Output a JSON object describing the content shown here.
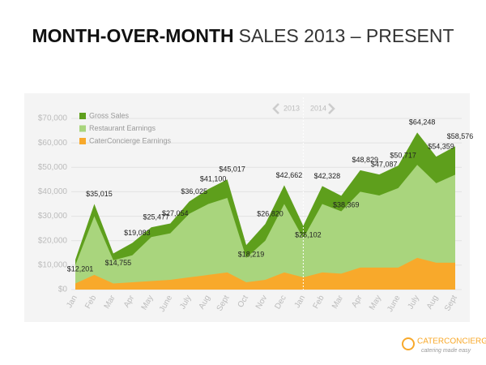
{
  "chart_data": {
    "type": "area",
    "title": {
      "bold": "MONTH-OVER-MONTH",
      "rest": "SALES 2013 – PRESENT"
    },
    "categories": [
      "Jan",
      "Feb",
      "Mar",
      "Apr",
      "May",
      "June",
      "July",
      "Aug",
      "Sept",
      "Oct",
      "Nov",
      "Dec",
      "Jan",
      "Feb",
      "Mar",
      "Apr",
      "May",
      "June",
      "July",
      "Aug",
      "Sept"
    ],
    "series": [
      {
        "name": "Gross Sales",
        "color": "#5e9f1c",
        "values": [
          12201,
          35015,
          14755,
          19083,
          25477,
          27054,
          36025,
          41100,
          45017,
          18219,
          26820,
          42662,
          26102,
          42328,
          38369,
          48829,
          47087,
          50717,
          64248,
          54359,
          58576
        ],
        "value_labels": [
          "$12,201",
          "$35,015",
          "$14,755",
          "$19,083",
          "$25,477",
          "$27,054",
          "$36,025",
          "$41,100",
          "$45,017",
          "$18,219",
          "$26,820",
          "$42,662",
          "$26,102",
          "$42,328",
          "$38,369",
          "$48,829",
          "$47,087",
          "$50,717",
          "$64,248",
          "$54,359",
          "$58,576"
        ]
      },
      {
        "name": "Restaurant Earnings",
        "color": "#a9d57d",
        "values": [
          10000,
          30000,
          12000,
          14000,
          21500,
          23000,
          31000,
          35000,
          37500,
          13000,
          20000,
          35000,
          21000,
          35000,
          32000,
          40000,
          38500,
          41500,
          51000,
          43500,
          47000
        ]
      },
      {
        "name": "CaterConcierge Earnings",
        "color": "#f8a92b",
        "values": [
          2500,
          6000,
          2500,
          3000,
          3500,
          4000,
          5000,
          6000,
          7000,
          3000,
          4000,
          7000,
          5000,
          7000,
          6500,
          9000,
          9000,
          9000,
          13000,
          11000,
          11000
        ]
      }
    ],
    "ylim": [
      0,
      70000
    ],
    "yticks": [
      {
        "value": 0,
        "label": "$0"
      },
      {
        "value": 10000,
        "label": "$10,000"
      },
      {
        "value": 20000,
        "label": "$20,000"
      },
      {
        "value": 30000,
        "label": "$30,000"
      },
      {
        "value": 40000,
        "label": "$40,000"
      },
      {
        "value": 50000,
        "label": "$50,000"
      },
      {
        "value": 60000,
        "label": "$60,000"
      },
      {
        "value": 70000,
        "label": "$70,000"
      }
    ],
    "grid": true,
    "year_labels": [
      "2013",
      "2014"
    ]
  },
  "brand": {
    "name": "CATERCONCIERGE",
    "tagline": "catering made easy"
  }
}
